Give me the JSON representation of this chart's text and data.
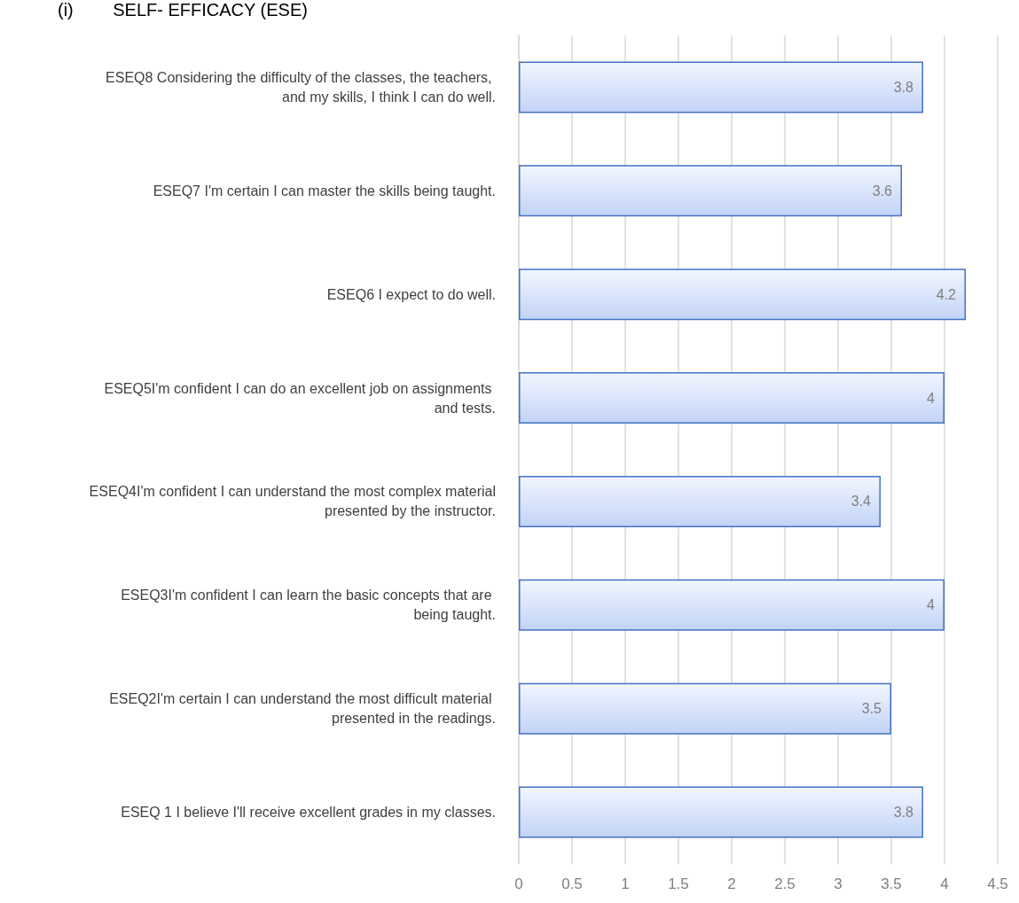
{
  "chart_data": {
    "type": "bar",
    "orientation": "horizontal",
    "title": "(i)        SELF- EFFICACY (ESE)",
    "categories": [
      "ESEQ8 Considering the difficulty of the classes, the teachers, and my skills, I think I can do well.",
      "ESEQ7 I'm certain I can master the skills being taught.",
      "ESEQ6 I expect to do well.",
      "ESEQ5I'm confident I can do an excellent job on assignments and tests.",
      "ESEQ4I'm confident I can understand the most complex material presented by the instructor.",
      "ESEQ3I'm confident I can learn the basic concepts that are being taught.",
      "ESEQ2I'm certain I can understand the most difficult material presented in the readings.",
      "ESEQ 1 I believe I'll receive excellent grades in my classes."
    ],
    "values": [
      3.8,
      3.6,
      4.2,
      4,
      3.4,
      4,
      3.5,
      3.8
    ],
    "color": "#4472c4",
    "xlim": [
      0,
      4.5
    ],
    "xticks": [
      0,
      0.5,
      1,
      1.5,
      2,
      2.5,
      3,
      3.5,
      4,
      4.5
    ],
    "grid": "x",
    "data_labels": true
  }
}
